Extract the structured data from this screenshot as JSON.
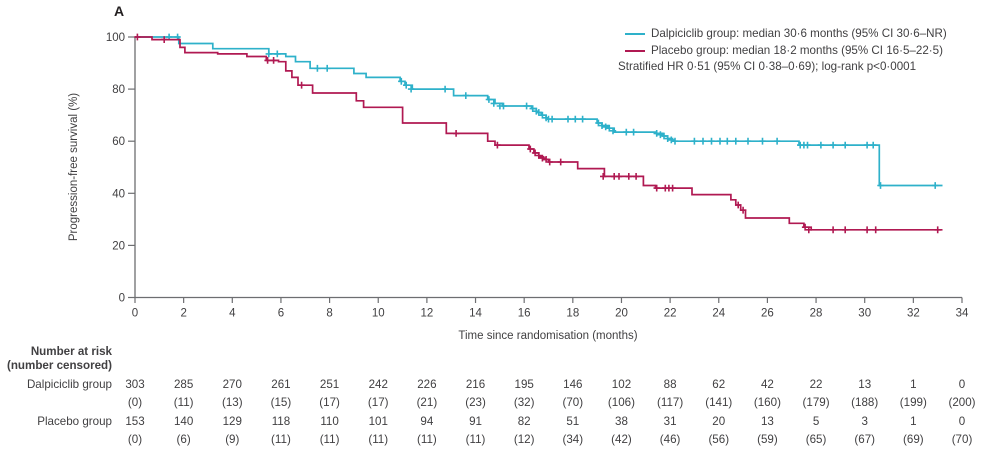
{
  "panel_label": "A",
  "colors": {
    "dalpiciclib": "#2eb1ca",
    "placebo": "#b01952",
    "axis": "#6d6e71",
    "text": "#414042"
  },
  "legend": {
    "items": [
      {
        "name": "Dalpiciclib group",
        "label": "Dalpiciclib group: median 30·6 months (95% CI 30·6–NR)",
        "color": "#2eb1ca"
      },
      {
        "name": "Placebo group",
        "label": "Placebo group: median 18·2 months (95% CI 16·5–22·5)",
        "color": "#b01952"
      }
    ],
    "note": "Stratified HR 0·51 (95% CI 0·38–0·69); log-rank p<0·0001"
  },
  "chart_data": {
    "type": "line",
    "subtype": "kaplan-meier-step",
    "title": "",
    "xlabel": "Time since randomisation (months)",
    "ylabel": "Progression-free survival (%)",
    "xlim": [
      0,
      34
    ],
    "ylim": [
      0,
      100
    ],
    "xticks": [
      0,
      2,
      4,
      6,
      8,
      10,
      12,
      14,
      16,
      18,
      20,
      22,
      24,
      26,
      28,
      30,
      32,
      34
    ],
    "yticks": [
      0,
      20,
      40,
      60,
      80,
      100
    ],
    "grid": false,
    "legend_position": "top-right",
    "series": [
      {
        "name": "Dalpiciclib group",
        "color": "#2eb1ca",
        "median_months": "30·6",
        "ci_95": "30·6–NR",
        "steps": [
          [
            0,
            100
          ],
          [
            1.8,
            97.5
          ],
          [
            3.2,
            95.5
          ],
          [
            5.5,
            93.5
          ],
          [
            6.2,
            92.5
          ],
          [
            6.6,
            90.5
          ],
          [
            7.2,
            88
          ],
          [
            9.0,
            86
          ],
          [
            9.5,
            84.5
          ],
          [
            10.9,
            83
          ],
          [
            11.1,
            81.5
          ],
          [
            11.4,
            80
          ],
          [
            13.1,
            77.5
          ],
          [
            14.5,
            76
          ],
          [
            14.8,
            74.5
          ],
          [
            15.1,
            73.5
          ],
          [
            16.3,
            72.5
          ],
          [
            16.5,
            71
          ],
          [
            16.7,
            70
          ],
          [
            16.9,
            68.5
          ],
          [
            19.0,
            67
          ],
          [
            19.2,
            66
          ],
          [
            19.45,
            65
          ],
          [
            19.7,
            63.5
          ],
          [
            21.4,
            63
          ],
          [
            21.7,
            62
          ],
          [
            21.9,
            61
          ],
          [
            22.1,
            60
          ],
          [
            27.3,
            58.5
          ],
          [
            30.6,
            43
          ],
          [
            33.2,
            43
          ]
        ],
        "censor_marks": [
          [
            1.4,
            100
          ],
          [
            1.75,
            100
          ],
          [
            5.5,
            93.5
          ],
          [
            5.85,
            93.5
          ],
          [
            7.5,
            88
          ],
          [
            7.9,
            88
          ],
          [
            10.95,
            83
          ],
          [
            11.15,
            81.5
          ],
          [
            11.35,
            80
          ],
          [
            12.75,
            80
          ],
          [
            13.6,
            77.5
          ],
          [
            14.55,
            76
          ],
          [
            14.75,
            74.5
          ],
          [
            15.0,
            73.5
          ],
          [
            15.15,
            73.5
          ],
          [
            16.1,
            73.5
          ],
          [
            16.35,
            72.5
          ],
          [
            16.5,
            71.5
          ],
          [
            16.6,
            71
          ],
          [
            16.75,
            70
          ],
          [
            16.9,
            69
          ],
          [
            17.0,
            68.5
          ],
          [
            17.15,
            68.5
          ],
          [
            17.8,
            68.5
          ],
          [
            18.1,
            68.5
          ],
          [
            18.4,
            68.5
          ],
          [
            19.05,
            67
          ],
          [
            19.2,
            66
          ],
          [
            19.35,
            65.5
          ],
          [
            19.5,
            65
          ],
          [
            19.65,
            64
          ],
          [
            20.2,
            63.5
          ],
          [
            20.5,
            63.5
          ],
          [
            21.45,
            63
          ],
          [
            21.6,
            62.5
          ],
          [
            21.75,
            62
          ],
          [
            21.9,
            61
          ],
          [
            22.05,
            60.5
          ],
          [
            22.2,
            60
          ],
          [
            23.0,
            60
          ],
          [
            23.35,
            60
          ],
          [
            23.7,
            60
          ],
          [
            24.05,
            60
          ],
          [
            24.35,
            60
          ],
          [
            24.7,
            60
          ],
          [
            25.2,
            60
          ],
          [
            25.8,
            60
          ],
          [
            26.4,
            60
          ],
          [
            27.35,
            58.5
          ],
          [
            27.5,
            58.5
          ],
          [
            27.65,
            58.5
          ],
          [
            28.2,
            58.5
          ],
          [
            28.7,
            58.5
          ],
          [
            29.2,
            58.5
          ],
          [
            30.1,
            58.5
          ],
          [
            30.35,
            58.5
          ],
          [
            30.65,
            43
          ],
          [
            32.9,
            43
          ]
        ]
      },
      {
        "name": "Placebo group",
        "color": "#b01952",
        "median_months": "18·2",
        "ci_95": "16·5–22·5",
        "steps": [
          [
            0,
            100
          ],
          [
            0.7,
            99
          ],
          [
            1.85,
            96
          ],
          [
            2.05,
            94
          ],
          [
            3.4,
            93.5
          ],
          [
            4.6,
            92.5
          ],
          [
            5.4,
            91
          ],
          [
            5.9,
            90.5
          ],
          [
            6.2,
            87
          ],
          [
            6.45,
            84.5
          ],
          [
            6.7,
            81.5
          ],
          [
            7.3,
            78.5
          ],
          [
            9.1,
            75.5
          ],
          [
            9.4,
            73
          ],
          [
            11.0,
            67
          ],
          [
            12.8,
            63
          ],
          [
            14.5,
            60
          ],
          [
            14.8,
            58.5
          ],
          [
            16.2,
            57
          ],
          [
            16.4,
            55.5
          ],
          [
            16.6,
            54
          ],
          [
            16.8,
            53
          ],
          [
            17.0,
            52
          ],
          [
            18.2,
            49.5
          ],
          [
            19.3,
            46.5
          ],
          [
            20.9,
            43
          ],
          [
            21.4,
            42
          ],
          [
            22.9,
            39.5
          ],
          [
            24.5,
            37.5
          ],
          [
            24.7,
            35.5
          ],
          [
            24.9,
            33.5
          ],
          [
            25.1,
            30.5
          ],
          [
            26.9,
            28.5
          ],
          [
            27.5,
            27
          ],
          [
            27.8,
            26
          ],
          [
            33.2,
            26
          ]
        ],
        "censor_marks": [
          [
            0.1,
            100
          ],
          [
            1.2,
            99
          ],
          [
            5.45,
            91
          ],
          [
            5.7,
            91
          ],
          [
            6.85,
            81.5
          ],
          [
            13.2,
            63
          ],
          [
            14.9,
            58.5
          ],
          [
            16.25,
            57
          ],
          [
            16.45,
            55.5
          ],
          [
            16.6,
            54.5
          ],
          [
            16.75,
            53.5
          ],
          [
            16.9,
            53
          ],
          [
            17.05,
            52
          ],
          [
            17.5,
            52
          ],
          [
            19.25,
            46.5
          ],
          [
            19.7,
            46.5
          ],
          [
            19.9,
            46.5
          ],
          [
            20.3,
            46.5
          ],
          [
            20.6,
            46.5
          ],
          [
            21.45,
            42
          ],
          [
            21.8,
            42
          ],
          [
            21.95,
            42
          ],
          [
            22.1,
            42
          ],
          [
            24.8,
            35.5
          ],
          [
            25.0,
            33.5
          ],
          [
            27.55,
            27
          ],
          [
            27.7,
            26
          ],
          [
            28.7,
            26
          ],
          [
            29.2,
            26
          ],
          [
            30.1,
            26
          ],
          [
            30.45,
            26
          ],
          [
            33.0,
            26
          ]
        ]
      }
    ]
  },
  "risk_table": {
    "header_line1": "Number at risk",
    "header_line2": "(number censored)",
    "timepoints": [
      0,
      2,
      4,
      6,
      8,
      10,
      12,
      14,
      16,
      18,
      20,
      22,
      24,
      26,
      28,
      30,
      32,
      34
    ],
    "rows": [
      {
        "label": "Dalpiciclib group",
        "at_risk": [
          303,
          285,
          270,
          261,
          251,
          242,
          226,
          216,
          195,
          146,
          102,
          88,
          62,
          42,
          22,
          13,
          1,
          0
        ],
        "censored": [
          0,
          11,
          13,
          15,
          17,
          17,
          21,
          23,
          32,
          70,
          106,
          117,
          141,
          160,
          179,
          188,
          199,
          200
        ]
      },
      {
        "label": "Placebo group",
        "at_risk": [
          153,
          140,
          129,
          118,
          110,
          101,
          94,
          91,
          82,
          51,
          38,
          31,
          20,
          13,
          5,
          3,
          1,
          0
        ],
        "censored": [
          0,
          6,
          9,
          11,
          11,
          11,
          11,
          11,
          12,
          34,
          42,
          46,
          56,
          59,
          65,
          67,
          69,
          70
        ]
      }
    ]
  }
}
